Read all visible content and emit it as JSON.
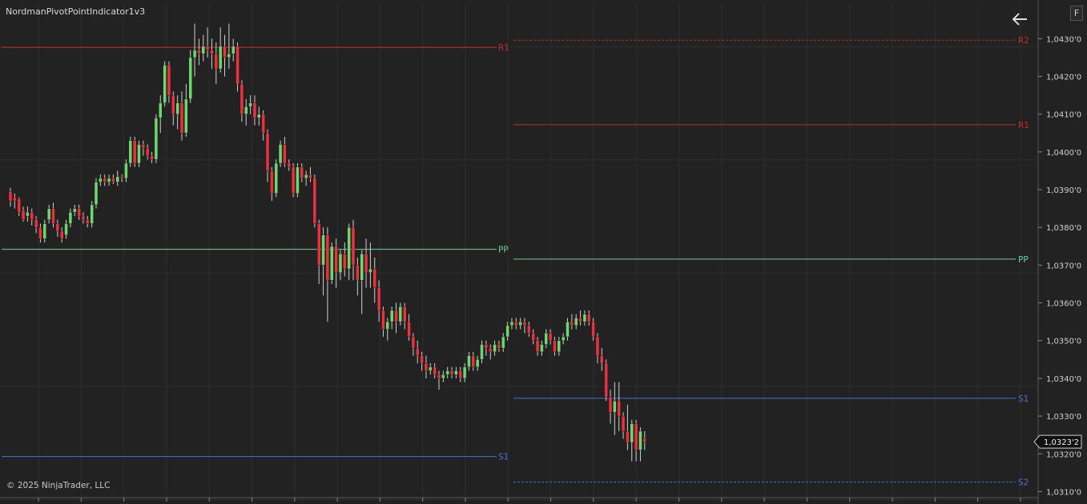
{
  "indicator_title": "NordmanPivotPointIndicator1v3",
  "copyright": "© 2025 NinjaTrader, LLC",
  "f_button_label": "F",
  "icons": {
    "back": "arrow-left-icon"
  },
  "colors": {
    "background": "#222222",
    "grid": "#2e2e2e",
    "up_candle": "#6fd66f",
    "down_candle": "#e8333f",
    "wick": "#cfcfcf",
    "resistance": "#c22b2b",
    "pivot": "#6fd0a0",
    "support": "#4a6fd0",
    "price_axis_text": "#cfcfcf"
  },
  "chart_data": {
    "type": "candlestick",
    "y_axis": {
      "range": [
        1.03084,
        1.04394
      ],
      "ticks": [
        "1,0310'0",
        "1,0320'0",
        "1,0330'0",
        "1,0340'0",
        "1,0350'0",
        "1,0360'0",
        "1,0370'0",
        "1,0380'0",
        "1,0390'0",
        "1,0400'0",
        "1,0410'0",
        "1,0420'0",
        "1,0430'0"
      ],
      "tick_values": [
        1.031,
        1.032,
        1.033,
        1.034,
        1.035,
        1.036,
        1.037,
        1.038,
        1.039,
        1.04,
        1.041,
        1.042,
        1.043
      ]
    },
    "current_price_label": "1,0323'2",
    "current_price": 1.03232,
    "pivot_levels": [
      {
        "label": "R1",
        "session": 1,
        "value": 1.04277,
        "style": "solid",
        "kind": "resistance"
      },
      {
        "label": "PP",
        "session": 1,
        "value": 1.03742,
        "style": "solid",
        "kind": "pivot"
      },
      {
        "label": "S1",
        "session": 1,
        "value": 1.03193,
        "style": "solid",
        "kind": "support"
      },
      {
        "label": "R2",
        "session": 2,
        "value": 1.04296,
        "style": "dashed",
        "kind": "resistance"
      },
      {
        "label": "R1",
        "session": 2,
        "value": 1.04072,
        "style": "solid",
        "kind": "resistance"
      },
      {
        "label": "PP",
        "session": 2,
        "value": 1.03716,
        "style": "solid",
        "kind": "pivot"
      },
      {
        "label": "S1",
        "session": 2,
        "value": 1.03347,
        "style": "solid",
        "kind": "support"
      },
      {
        "label": "S2",
        "session": 2,
        "value": 1.03125,
        "style": "dashed",
        "kind": "support"
      }
    ],
    "candles": [
      [
        1.03895,
        1.0387,
        1.03905,
        1.03855
      ],
      [
        1.0388,
        1.0387,
        1.0389,
        1.0385
      ],
      [
        1.03875,
        1.0384,
        1.0388,
        1.0383
      ],
      [
        1.03845,
        1.0382,
        1.03855,
        1.03815
      ],
      [
        1.0383,
        1.0384,
        1.03855,
        1.03815
      ],
      [
        1.0384,
        1.0382,
        1.0385,
        1.03805
      ],
      [
        1.0382,
        1.038,
        1.0383,
        1.03785
      ],
      [
        1.038,
        1.0377,
        1.0381,
        1.0376
      ],
      [
        1.0377,
        1.0381,
        1.0382,
        1.0376
      ],
      [
        1.0382,
        1.0385,
        1.0386,
        1.0381
      ],
      [
        1.0385,
        1.0381,
        1.03865,
        1.038
      ],
      [
        1.0381,
        1.0379,
        1.0382,
        1.03775
      ],
      [
        1.0379,
        1.0377,
        1.038,
        1.0376
      ],
      [
        1.0378,
        1.0381,
        1.0382,
        1.0377
      ],
      [
        1.0381,
        1.0384,
        1.0385,
        1.038
      ],
      [
        1.0384,
        1.0385,
        1.0386,
        1.0383
      ],
      [
        1.0385,
        1.0383,
        1.0386,
        1.0382
      ],
      [
        1.0383,
        1.0382,
        1.0384,
        1.0381
      ],
      [
        1.0382,
        1.0381,
        1.0383,
        1.038
      ],
      [
        1.0381,
        1.0386,
        1.0387,
        1.038
      ],
      [
        1.0386,
        1.0392,
        1.0393,
        1.0385
      ],
      [
        1.0392,
        1.0393,
        1.0394,
        1.0391
      ],
      [
        1.0393,
        1.0392,
        1.0394,
        1.0391
      ],
      [
        1.0392,
        1.0393,
        1.0394,
        1.0391
      ],
      [
        1.0393,
        1.0392,
        1.0394,
        1.03915
      ],
      [
        1.0392,
        1.03935,
        1.0395,
        1.0391
      ],
      [
        1.03935,
        1.0393,
        1.0394,
        1.0392
      ],
      [
        1.0393,
        1.0397,
        1.0398,
        1.0392
      ],
      [
        1.0397,
        1.0403,
        1.0404,
        1.0396
      ],
      [
        1.0403,
        1.0397,
        1.0404,
        1.0396
      ],
      [
        1.0397,
        1.0402,
        1.0403,
        1.0396
      ],
      [
        1.0402,
        1.0401,
        1.0403,
        1.0399
      ],
      [
        1.0401,
        1.0399,
        1.0402,
        1.0398
      ],
      [
        1.0399,
        1.0398,
        1.04,
        1.0397
      ],
      [
        1.0398,
        1.0409,
        1.041,
        1.0397
      ],
      [
        1.0409,
        1.0413,
        1.0415,
        1.0405
      ],
      [
        1.0413,
        1.0423,
        1.0424,
        1.0412
      ],
      [
        1.0423,
        1.0415,
        1.0424,
        1.0413
      ],
      [
        1.0415,
        1.041,
        1.0416,
        1.0407
      ],
      [
        1.041,
        1.0413,
        1.0415,
        1.0406
      ],
      [
        1.0413,
        1.0405,
        1.0416,
        1.0403
      ],
      [
        1.0405,
        1.0414,
        1.0418,
        1.0404
      ],
      [
        1.0414,
        1.0425,
        1.0427,
        1.0413
      ],
      [
        1.0425,
        1.0427,
        1.0434,
        1.042
      ],
      [
        1.0427,
        1.0426,
        1.043,
        1.0423
      ],
      [
        1.0426,
        1.0428,
        1.0431,
        1.0424
      ],
      [
        1.0428,
        1.0427,
        1.0433,
        1.0425
      ],
      [
        1.0427,
        1.0426,
        1.043,
        1.0422
      ],
      [
        1.0426,
        1.0422,
        1.0429,
        1.0418
      ],
      [
        1.0422,
        1.0428,
        1.0433,
        1.0421
      ],
      [
        1.0428,
        1.0425,
        1.0431,
        1.042
      ],
      [
        1.0425,
        1.0426,
        1.0434,
        1.0422
      ],
      [
        1.0426,
        1.0428,
        1.043,
        1.0424
      ],
      [
        1.0428,
        1.0418,
        1.0429,
        1.0416
      ],
      [
        1.0418,
        1.041,
        1.0419,
        1.0408
      ],
      [
        1.041,
        1.0412,
        1.0414,
        1.0407
      ],
      [
        1.0412,
        1.0413,
        1.0415,
        1.041
      ],
      [
        1.0413,
        1.0409,
        1.0415,
        1.0407
      ],
      [
        1.0409,
        1.041,
        1.0412,
        1.0407
      ],
      [
        1.041,
        1.0405,
        1.0411,
        1.0403
      ],
      [
        1.0405,
        1.0395,
        1.0406,
        1.0392
      ],
      [
        1.0395,
        1.0389,
        1.0396,
        1.0387
      ],
      [
        1.0389,
        1.0397,
        1.0398,
        1.0388
      ],
      [
        1.0397,
        1.0402,
        1.0403,
        1.0396
      ],
      [
        1.0402,
        1.0397,
        1.0404,
        1.0396
      ],
      [
        1.0397,
        1.0396,
        1.0398,
        1.0395
      ],
      [
        1.0396,
        1.0389,
        1.0397,
        1.0388
      ],
      [
        1.0389,
        1.0396,
        1.0397,
        1.0388
      ],
      [
        1.0396,
        1.0393,
        1.0397,
        1.0392
      ],
      [
        1.0393,
        1.0394,
        1.0395,
        1.0391
      ],
      [
        1.0394,
        1.0393,
        1.0396,
        1.0392
      ],
      [
        1.0393,
        1.0381,
        1.0394,
        1.038
      ],
      [
        1.0381,
        1.037,
        1.0382,
        1.0365
      ],
      [
        1.037,
        1.0378,
        1.038,
        1.0362
      ],
      [
        1.0378,
        1.0366,
        1.038,
        1.0355
      ],
      [
        1.0366,
        1.0375,
        1.0376,
        1.0365
      ],
      [
        1.0375,
        1.0368,
        1.0377,
        1.0364
      ],
      [
        1.0368,
        1.0373,
        1.0374,
        1.0366
      ],
      [
        1.0373,
        1.0369,
        1.0376,
        1.0367
      ],
      [
        1.0369,
        1.038,
        1.0381,
        1.0366
      ],
      [
        1.038,
        1.037,
        1.0382,
        1.0366
      ],
      [
        1.037,
        1.0366,
        1.0372,
        1.0362
      ],
      [
        1.0366,
        1.0373,
        1.0374,
        1.0357
      ],
      [
        1.0373,
        1.0368,
        1.0377,
        1.0364
      ],
      [
        1.0368,
        1.0369,
        1.0376,
        1.0364
      ],
      [
        1.0369,
        1.0364,
        1.0372,
        1.036
      ],
      [
        1.0364,
        1.0358,
        1.0366,
        1.0355
      ],
      [
        1.0358,
        1.0353,
        1.0359,
        1.0351
      ],
      [
        1.0353,
        1.0355,
        1.0356,
        1.035
      ],
      [
        1.0355,
        1.0358,
        1.0359,
        1.0353
      ],
      [
        1.0358,
        1.0355,
        1.036,
        1.0352
      ],
      [
        1.0355,
        1.0359,
        1.036,
        1.0354
      ],
      [
        1.0359,
        1.0355,
        1.036,
        1.0353
      ],
      [
        1.0355,
        1.0351,
        1.0357,
        1.035
      ],
      [
        1.0351,
        1.0348,
        1.0352,
        1.0346
      ],
      [
        1.0348,
        1.0346,
        1.035,
        1.0344
      ],
      [
        1.0346,
        1.0344,
        1.0347,
        1.0342
      ],
      [
        1.0344,
        1.0342,
        1.0346,
        1.034
      ],
      [
        1.0342,
        1.0343,
        1.0344,
        1.0341
      ],
      [
        1.0343,
        1.0341,
        1.0344,
        1.034
      ],
      [
        1.0341,
        1.034,
        1.0342,
        1.0337
      ],
      [
        1.034,
        1.0341,
        1.0342,
        1.0339
      ],
      [
        1.0341,
        1.0342,
        1.0343,
        1.034
      ],
      [
        1.0342,
        1.0341,
        1.0343,
        1.034
      ],
      [
        1.0341,
        1.0342,
        1.0343,
        1.034
      ],
      [
        1.0342,
        1.034,
        1.0343,
        1.0339
      ],
      [
        1.034,
        1.0343,
        1.0344,
        1.0339
      ],
      [
        1.0343,
        1.0346,
        1.0347,
        1.0342
      ],
      [
        1.0346,
        1.0343,
        1.0347,
        1.0342
      ],
      [
        1.0343,
        1.0345,
        1.0346,
        1.0342
      ],
      [
        1.0345,
        1.0349,
        1.035,
        1.0344
      ],
      [
        1.0349,
        1.0348,
        1.035,
        1.0346
      ],
      [
        1.0348,
        1.0347,
        1.0349,
        1.0345
      ],
      [
        1.0347,
        1.0349,
        1.035,
        1.0346
      ],
      [
        1.0349,
        1.0348,
        1.035,
        1.0347
      ],
      [
        1.0348,
        1.0351,
        1.0352,
        1.0347
      ],
      [
        1.0351,
        1.0354,
        1.0355,
        1.035
      ],
      [
        1.0354,
        1.0355,
        1.0356,
        1.0353
      ],
      [
        1.0355,
        1.0354,
        1.0356,
        1.0353
      ],
      [
        1.0354,
        1.0355,
        1.0356,
        1.0353
      ],
      [
        1.0355,
        1.0354,
        1.0356,
        1.0352
      ],
      [
        1.0354,
        1.0352,
        1.0355,
        1.0351
      ],
      [
        1.0352,
        1.035,
        1.0353,
        1.0349
      ],
      [
        1.035,
        1.0347,
        1.0351,
        1.0346
      ],
      [
        1.0347,
        1.0349,
        1.035,
        1.0346
      ],
      [
        1.0349,
        1.0352,
        1.0353,
        1.0348
      ],
      [
        1.0352,
        1.035,
        1.0353,
        1.0349
      ],
      [
        1.035,
        1.0347,
        1.0351,
        1.0346
      ],
      [
        1.0347,
        1.035,
        1.0351,
        1.0346
      ],
      [
        1.035,
        1.0351,
        1.0352,
        1.0349
      ],
      [
        1.0351,
        1.0355,
        1.0356,
        1.035
      ],
      [
        1.0355,
        1.0354,
        1.0357,
        1.0353
      ],
      [
        1.0354,
        1.0356,
        1.0357,
        1.0353
      ],
      [
        1.0356,
        1.0355,
        1.0358,
        1.0354
      ],
      [
        1.0355,
        1.0357,
        1.0358,
        1.0354
      ],
      [
        1.0357,
        1.0355,
        1.0358,
        1.0354
      ],
      [
        1.0355,
        1.0351,
        1.0356,
        1.035
      ],
      [
        1.0351,
        1.0346,
        1.0352,
        1.0344
      ],
      [
        1.0346,
        1.0344,
        1.0348,
        1.0342
      ],
      [
        1.0344,
        1.0335,
        1.0345,
        1.0334
      ],
      [
        1.0335,
        1.0331,
        1.0337,
        1.0328
      ],
      [
        1.0331,
        1.0334,
        1.0339,
        1.0325
      ],
      [
        1.0334,
        1.033,
        1.0339,
        1.0326
      ],
      [
        1.033,
        1.0326,
        1.0331,
        1.0324
      ],
      [
        1.0326,
        1.0323,
        1.0333,
        1.0321
      ],
      [
        1.0323,
        1.0328,
        1.0329,
        1.0318
      ],
      [
        1.0328,
        1.0321,
        1.0329,
        1.0318
      ],
      [
        1.0321,
        1.0326,
        1.0327,
        1.0318
      ],
      [
        1.0324,
        1.03232,
        1.0326,
        1.0321
      ]
    ]
  }
}
